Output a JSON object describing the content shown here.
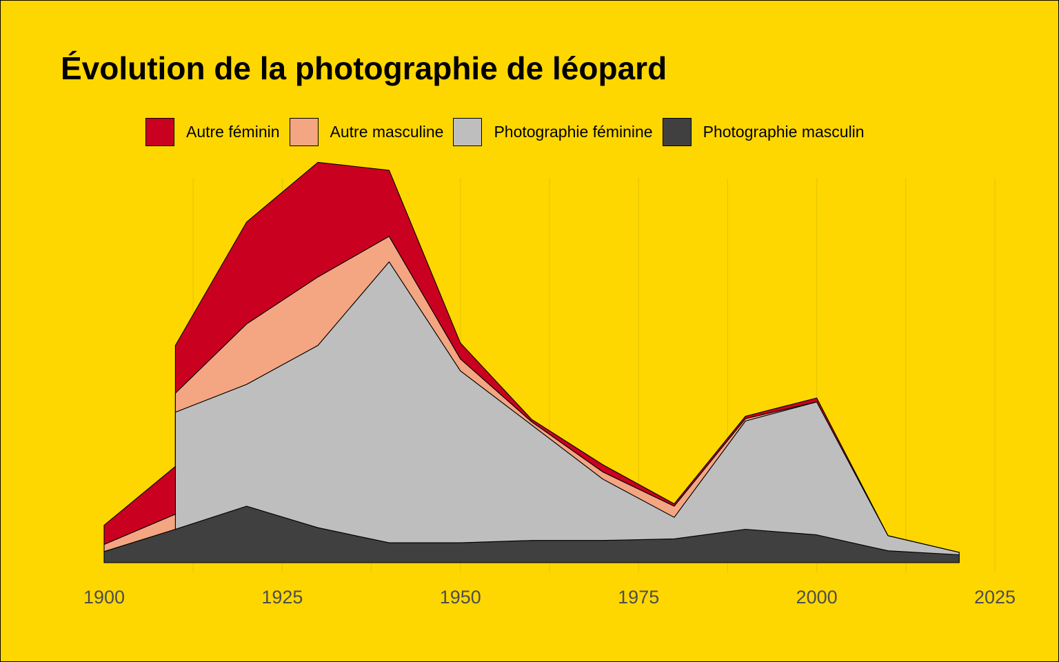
{
  "colors": {
    "background": "#FFD700",
    "grid": "#E8C800",
    "outline": "#000000",
    "tick_text": "#4D4D4D"
  },
  "chart_data": {
    "type": "area",
    "stacked": true,
    "title": "Évolution de la photographie de léopard",
    "xlabel": "",
    "ylabel": "",
    "legend_position": "top",
    "grid": "vertical",
    "xlim": [
      1900,
      2025
    ],
    "ylim": [
      0,
      525
    ],
    "x_ticks": [
      1900,
      1925,
      1950,
      1975,
      2000,
      2025
    ],
    "x": [
      1900,
      1910,
      1910,
      1920,
      1930,
      1940,
      1950,
      1960,
      1970,
      1980,
      1990,
      2000,
      2010,
      2020
    ],
    "series": [
      {
        "name": "Photographie masculin",
        "color": "#404040",
        "values": [
          14,
          42,
          42,
          71,
          44,
          25,
          25,
          28,
          28,
          30,
          42,
          35,
          15,
          10
        ]
      },
      {
        "name": "Photographie féminine",
        "color": "#BEBEBE",
        "values": [
          0,
          0,
          147,
          153,
          229,
          353,
          216,
          145,
          77,
          27,
          136,
          167,
          19,
          3
        ]
      },
      {
        "name": "Autre masculine",
        "color": "#F4A582",
        "values": [
          9,
          19,
          24,
          76,
          86,
          32,
          15,
          4,
          9,
          14,
          3,
          0,
          0,
          0
        ]
      },
      {
        "name": "Autre féminin",
        "color": "#CA0020",
        "values": [
          24,
          60,
          60,
          128,
          144,
          83,
          20,
          3,
          9,
          3,
          3,
          5,
          0,
          0
        ]
      }
    ],
    "legend_order": [
      "Autre féminin",
      "Autre masculine",
      "Photographie féminine",
      "Photographie masculin"
    ]
  }
}
